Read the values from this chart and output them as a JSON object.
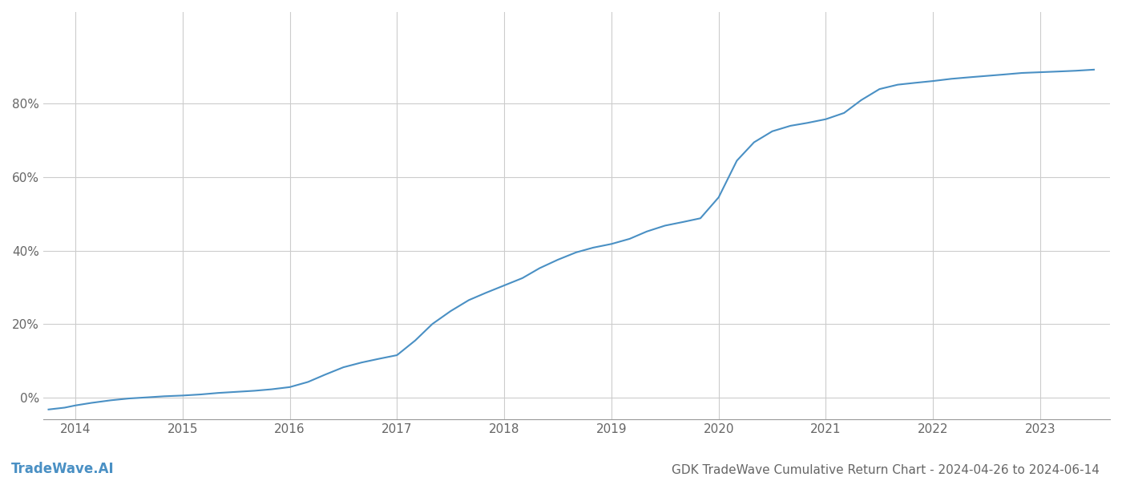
{
  "title": "GDK TradeWave Cumulative Return Chart - 2024-04-26 to 2024-06-14",
  "watermark": "TradeWave.AI",
  "line_color": "#4a90c4",
  "background_color": "#ffffff",
  "grid_color": "#cccccc",
  "axis_color": "#999999",
  "text_color": "#666666",
  "xlim": [
    2013.7,
    2023.65
  ],
  "ylim": [
    -0.06,
    1.05
  ],
  "yticks": [
    0.0,
    0.2,
    0.4,
    0.6,
    0.8
  ],
  "ytick_labels": [
    "0%",
    "20%",
    "40%",
    "60%",
    "80%"
  ],
  "xticks": [
    2014,
    2015,
    2016,
    2017,
    2018,
    2019,
    2020,
    2021,
    2022,
    2023
  ],
  "x": [
    2013.75,
    2013.9,
    2014.0,
    2014.15,
    2014.33,
    2014.5,
    2014.67,
    2014.83,
    2015.0,
    2015.17,
    2015.33,
    2015.5,
    2015.67,
    2015.83,
    2016.0,
    2016.17,
    2016.33,
    2016.5,
    2016.67,
    2016.83,
    2017.0,
    2017.17,
    2017.33,
    2017.5,
    2017.67,
    2017.83,
    2018.0,
    2018.17,
    2018.33,
    2018.5,
    2018.67,
    2018.83,
    2019.0,
    2019.17,
    2019.33,
    2019.5,
    2019.67,
    2019.83,
    2020.0,
    2020.17,
    2020.33,
    2020.5,
    2020.67,
    2020.83,
    2021.0,
    2021.17,
    2021.33,
    2021.5,
    2021.67,
    2021.83,
    2022.0,
    2022.17,
    2022.33,
    2022.5,
    2022.67,
    2022.83,
    2023.0,
    2023.17,
    2023.33,
    2023.5
  ],
  "y": [
    -0.033,
    -0.028,
    -0.022,
    -0.015,
    -0.008,
    -0.003,
    0.0,
    0.003,
    0.005,
    0.008,
    0.012,
    0.015,
    0.018,
    0.022,
    0.028,
    0.042,
    0.062,
    0.082,
    0.095,
    0.105,
    0.115,
    0.155,
    0.2,
    0.235,
    0.265,
    0.285,
    0.305,
    0.325,
    0.352,
    0.375,
    0.395,
    0.408,
    0.418,
    0.432,
    0.452,
    0.468,
    0.478,
    0.488,
    0.545,
    0.645,
    0.695,
    0.725,
    0.74,
    0.748,
    0.758,
    0.775,
    0.81,
    0.84,
    0.852,
    0.857,
    0.862,
    0.868,
    0.872,
    0.876,
    0.88,
    0.884,
    0.886,
    0.888,
    0.89,
    0.893
  ],
  "line_width": 1.5,
  "title_fontsize": 11,
  "tick_fontsize": 11,
  "watermark_fontsize": 12
}
